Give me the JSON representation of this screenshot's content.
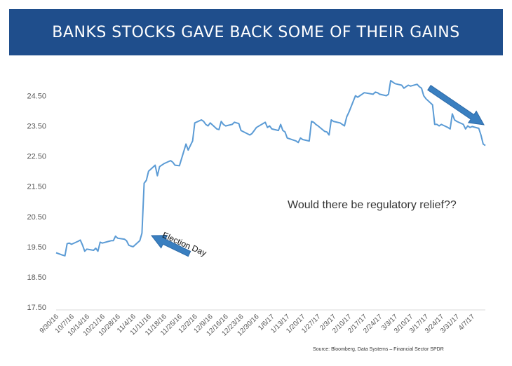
{
  "header": {
    "title": "BANKS STOCKS GAVE BACK SOME OF THEIR GAINS"
  },
  "chart_data": {
    "type": "line",
    "title": "",
    "xlabel": "",
    "ylabel": "",
    "ylim": [
      17.5,
      25.0
    ],
    "yticks": [
      "17.50",
      "18.50",
      "19.50",
      "20.50",
      "21.50",
      "22.50",
      "23.50",
      "24.50"
    ],
    "ytick_values": [
      17.5,
      18.5,
      19.5,
      20.5,
      21.5,
      22.5,
      23.5,
      24.5
    ],
    "xticks": [
      "9/30/16",
      "10/7/16",
      "10/14/16",
      "10/21/16",
      "10/28/16",
      "11/4/16",
      "11/11/16",
      "11/18/16",
      "11/25/16",
      "12/2/16",
      "12/9/16",
      "12/16/16",
      "12/23/16",
      "12/30/16",
      "1/6/17",
      "1/13/17",
      "1/20/17",
      "1/27/17",
      "2/3/17",
      "2/10/17",
      "2/17/17",
      "2/24/17",
      "3/3/17",
      "3/10/17",
      "3/17/17",
      "3/24/17",
      "3/31/17",
      "4/7/17"
    ],
    "grid": false,
    "legend": "none",
    "line_color": "#5b9bd5",
    "series": [
      {
        "x": [
          "9/30/16",
          "10/3/16",
          "10/4/16",
          "10/5/16",
          "10/6/16",
          "10/7/16",
          "10/10/16",
          "10/11/16",
          "10/12/16",
          "10/13/16",
          "10/14/16",
          "10/17/16",
          "10/18/16",
          "10/19/16",
          "10/20/16",
          "10/21/16",
          "10/24/16",
          "10/25/16",
          "10/26/16",
          "10/27/16",
          "10/28/16",
          "10/31/16",
          "11/1/16",
          "11/2/16",
          "11/3/16",
          "11/4/16",
          "11/7/16",
          "11/8/16",
          "11/9/16",
          "11/10/16",
          "11/11/16",
          "11/14/16",
          "11/15/16",
          "11/16/16",
          "11/17/16",
          "11/18/16",
          "11/21/16",
          "11/22/16",
          "11/23/16",
          "11/25/16",
          "11/28/16",
          "11/29/16",
          "11/30/16",
          "12/1/16",
          "12/2/16",
          "12/5/16",
          "12/6/16",
          "12/7/16",
          "12/8/16",
          "12/9/16",
          "12/12/16",
          "12/13/16",
          "12/14/16",
          "12/15/16",
          "12/16/16",
          "12/19/16",
          "12/20/16",
          "12/21/16",
          "12/22/16",
          "12/23/16",
          "12/27/16",
          "12/28/16",
          "12/29/16",
          "12/30/16",
          "1/3/17",
          "1/4/17",
          "1/5/17",
          "1/6/17",
          "1/9/17",
          "1/10/17",
          "1/11/17",
          "1/12/17",
          "1/13/17",
          "1/17/17",
          "1/18/17",
          "1/19/17",
          "1/20/17",
          "1/23/17",
          "1/24/17",
          "1/25/17",
          "1/26/17",
          "1/27/17",
          "1/30/17",
          "1/31/17",
          "2/1/17",
          "2/2/17",
          "2/3/17",
          "2/6/17",
          "2/7/17",
          "2/8/17",
          "2/9/17",
          "2/10/17",
          "2/13/17",
          "2/14/17",
          "2/15/17",
          "2/16/17",
          "2/17/17",
          "2/21/17",
          "2/22/17",
          "2/23/17",
          "2/24/17",
          "2/27/17",
          "2/28/17",
          "3/1/17",
          "3/2/17",
          "3/3/17",
          "3/6/17",
          "3/7/17",
          "3/8/17",
          "3/9/17",
          "3/10/17",
          "3/13/17",
          "3/14/17",
          "3/15/17",
          "3/16/17",
          "3/17/17",
          "3/20/17",
          "3/21/17",
          "3/22/17",
          "3/23/17",
          "3/24/17",
          "3/27/17",
          "3/28/17",
          "3/29/17",
          "3/30/17",
          "3/31/17",
          "4/3/17",
          "4/4/17",
          "4/5/17",
          "4/6/17",
          "4/7/17",
          "4/10/17",
          "4/11/17",
          "4/12/17",
          "4/13/17"
        ],
        "y": [
          19.3,
          19.22,
          19.2,
          19.6,
          19.62,
          19.58,
          19.68,
          19.72,
          19.55,
          19.35,
          19.42,
          19.38,
          19.45,
          19.35,
          19.65,
          19.62,
          19.68,
          19.7,
          19.7,
          19.85,
          19.78,
          19.75,
          19.7,
          19.55,
          19.52,
          19.5,
          19.7,
          19.95,
          21.6,
          21.7,
          22.0,
          22.2,
          21.85,
          22.15,
          22.2,
          22.25,
          22.35,
          22.3,
          22.2,
          22.18,
          22.9,
          22.7,
          22.85,
          23.0,
          23.6,
          23.7,
          23.65,
          23.55,
          23.5,
          23.6,
          23.4,
          23.38,
          23.65,
          23.55,
          23.5,
          23.55,
          23.62,
          23.6,
          23.58,
          23.35,
          23.2,
          23.25,
          23.35,
          23.45,
          23.62,
          23.45,
          23.5,
          23.4,
          23.35,
          23.55,
          23.35,
          23.3,
          23.1,
          23.0,
          22.95,
          23.1,
          23.05,
          23.0,
          23.65,
          23.62,
          23.55,
          23.5,
          23.32,
          23.3,
          23.2,
          23.7,
          23.65,
          23.6,
          23.55,
          23.5,
          23.8,
          23.95,
          24.5,
          24.45,
          24.5,
          24.55,
          24.6,
          24.55,
          24.62,
          24.6,
          24.55,
          24.5,
          24.55,
          25.0,
          24.95,
          24.9,
          24.85,
          24.75,
          24.8,
          24.85,
          24.82,
          24.88,
          24.8,
          24.75,
          24.5,
          24.4,
          24.2,
          23.55,
          23.55,
          23.5,
          23.55,
          23.45,
          23.4,
          23.9,
          23.7,
          23.65,
          23.55,
          23.4,
          23.5,
          23.45,
          23.48,
          23.42,
          23.2,
          22.9,
          22.85
        ]
      }
    ]
  },
  "annotations": {
    "question": "Would there be regulatory relief??",
    "election": "Election Day",
    "source": "Source:  Bloomberg, Data Systems – Financial Sector SPDR"
  }
}
